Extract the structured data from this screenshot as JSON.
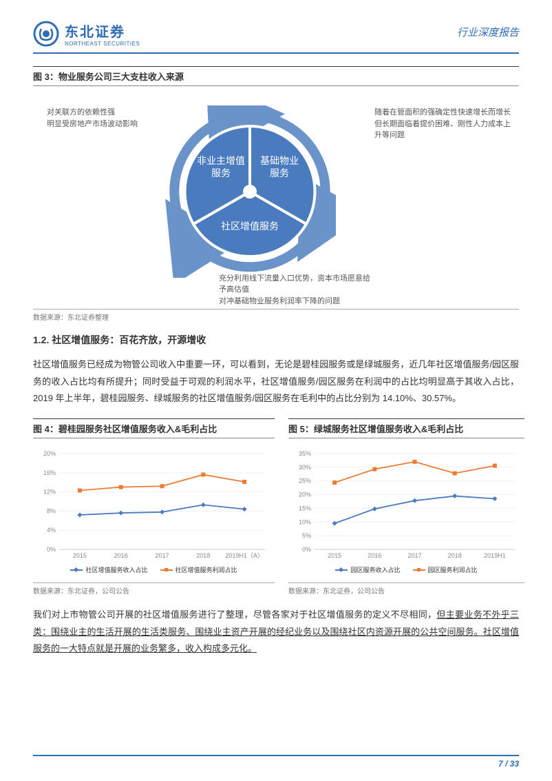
{
  "header": {
    "company_cn": "东北证券",
    "company_en": "NORTHEAST SECURITIES",
    "report_type": "行业深度报告"
  },
  "fig3": {
    "title": "图 3：物业服务公司三大支柱收入来源",
    "source": "数据来源：东北证券整理",
    "segments": {
      "top_left": "非业主增值服务",
      "top_right": "基础物业服务",
      "bottom": "社区增值服务"
    },
    "seg_color": "#4a7bbf",
    "arrow_color": "#6993c9",
    "annot_left_l1": "对关联方的依赖性强",
    "annot_left_l2": "明显受房地产市场波动影响",
    "annot_right_l1": "随着在管面积的强确定性快速增长而增长",
    "annot_right_l2": "但长期面临着提价困难、刚性人力成本上升等问题",
    "annot_bottom_l1": "充分利用线下流量入口优势，资本市场愿意给予高估值",
    "annot_bottom_l2": "对冲基础物业服务利润率下降的问题"
  },
  "section12": {
    "heading": "1.2. 社区增值服务：百花齐放，开源增收",
    "para1": "社区增值服务已经成为物管公司收入中重要一环，可以看到，无论是碧桂园服务或是绿城服务，近几年社区增值服务/园区服务的收入占比均有所提升；同时受益于可观的利润水平，社区增值服务/园区服务在利润中的占比均明显高于其收入占比，2019 年上半年，碧桂园服务、绿城服务的社区增值服务/园区服务在毛利中的占比分别为 14.10%、30.57%。"
  },
  "fig4": {
    "title": "图 4：碧桂园服务社区增值服务收入&毛利占比",
    "source": "数据来源：东北证券，公司公告",
    "type": "line",
    "categories": [
      "2015",
      "2016",
      "2017",
      "2018",
      "2019H1（A）"
    ],
    "ylim": [
      0,
      20
    ],
    "ytick_step": 4,
    "y_suffix": "%",
    "series": [
      {
        "name": "社区增值服务收入占比",
        "color": "#4a7bbf",
        "marker": "diamond",
        "values": [
          7.2,
          7.6,
          7.8,
          9.3,
          8.4
        ]
      },
      {
        "name": "社区增值服务利润占比",
        "color": "#ec7c31",
        "marker": "square",
        "values": [
          12.3,
          13.0,
          13.2,
          15.6,
          14.1
        ]
      }
    ],
    "grid_color": "#f0f0f0",
    "axis_color": "#cccccc",
    "label_fontsize": 9
  },
  "fig5": {
    "title": "图 5：绿城服务社区增值服务收入&毛利占比",
    "source": "数据来源：东北证券，公司公告",
    "type": "line",
    "categories": [
      "2015",
      "2016",
      "2017",
      "2018",
      "2019H1"
    ],
    "ylim": [
      0,
      35
    ],
    "ytick_step": 5,
    "y_suffix": "%",
    "series": [
      {
        "name": "园区服务收入占比",
        "color": "#4a7bbf",
        "marker": "diamond",
        "values": [
          9.5,
          14.8,
          17.8,
          19.5,
          18.5
        ]
      },
      {
        "name": "园区服务利润占比",
        "color": "#ec7c31",
        "marker": "square",
        "values": [
          24.4,
          29.3,
          32.0,
          27.8,
          30.57
        ]
      }
    ],
    "grid_color": "#f0f0f0",
    "axis_color": "#cccccc",
    "label_fontsize": 9
  },
  "para2_pre": "我们对上市物管公司开展的社区增值服务进行了整理，尽管各家对于社区增值服务的定义不尽相同，",
  "para2_u1": "但主要业务不外乎三类：围绕业主的生活开展的生活类服务、围绕业主资产开展的经纪业务以及围绕社区内资源开展的公共空间服务。",
  "para2_u2": "社区增值服务的一大特点就是开展的业务繁多，收入构成多元化。",
  "footer": {
    "page": "7 / 33"
  }
}
